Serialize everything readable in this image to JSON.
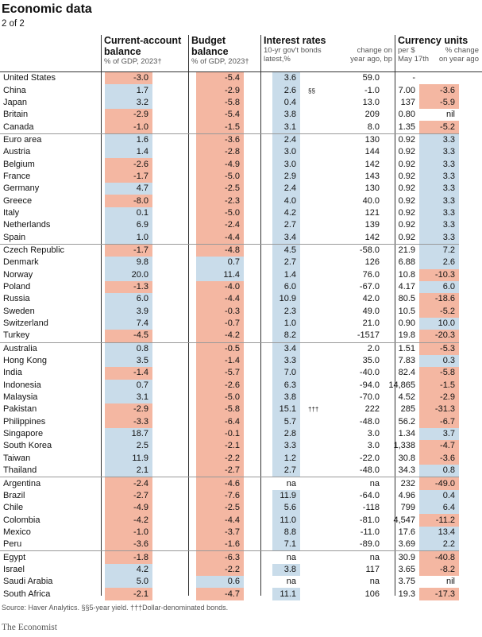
{
  "title": "Economic data",
  "subtitle": "2 of 2",
  "headers": {
    "ca": {
      "h1": "Current-account",
      "h1b": "balance",
      "h2": "% of GDP, 2023†"
    },
    "bb": {
      "h1": "Budget",
      "h1b": "balance",
      "h2": "% of GDP, 2023†"
    },
    "ir": {
      "h1": "Interest rates",
      "h2a": "10-yr gov't bonds",
      "h2b": "latest,%",
      "h2c": "change on",
      "h2d": "year ago, bp"
    },
    "cu": {
      "h1": "Currency units",
      "h2a": "per $",
      "h2b": "May 17th",
      "h2c": "% change",
      "h2d": "on year ago"
    }
  },
  "rows": [
    {
      "c": "United States",
      "ca": "-3.0",
      "bb": "-5.4",
      "ir": "3.6",
      "sup": "",
      "chg": "59.0",
      "cu": "-",
      "cc": ""
    },
    {
      "c": "China",
      "ca": "1.7",
      "bb": "-2.9",
      "ir": "2.6",
      "sup": "§§",
      "chg": "-1.0",
      "cu": "7.00",
      "cc": "-3.6"
    },
    {
      "c": "Japan",
      "ca": "3.2",
      "bb": "-5.8",
      "ir": "0.4",
      "sup": "",
      "chg": "13.0",
      "cu": "137",
      "cc": "-5.9"
    },
    {
      "c": "Britain",
      "ca": "-2.9",
      "bb": "-5.4",
      "ir": "3.8",
      "sup": "",
      "chg": "209",
      "cu": "0.80",
      "cc": "nil"
    },
    {
      "c": "Canada",
      "ca": "-1.0",
      "bb": "-1.5",
      "ir": "3.1",
      "sup": "",
      "chg": "8.0",
      "cu": "1.35",
      "cc": "-5.2"
    },
    {
      "c": "Euro area",
      "ca": "1.6",
      "bb": "-3.6",
      "ir": "2.4",
      "sup": "",
      "chg": "130",
      "cu": "0.92",
      "cc": "3.3",
      "g": 1
    },
    {
      "c": "Austria",
      "ca": "1.4",
      "bb": "-2.8",
      "ir": "3.0",
      "sup": "",
      "chg": "144",
      "cu": "0.92",
      "cc": "3.3"
    },
    {
      "c": "Belgium",
      "ca": "-2.6",
      "bb": "-4.9",
      "ir": "3.0",
      "sup": "",
      "chg": "142",
      "cu": "0.92",
      "cc": "3.3"
    },
    {
      "c": "France",
      "ca": "-1.7",
      "bb": "-5.0",
      "ir": "2.9",
      "sup": "",
      "chg": "143",
      "cu": "0.92",
      "cc": "3.3"
    },
    {
      "c": "Germany",
      "ca": "4.7",
      "bb": "-2.5",
      "ir": "2.4",
      "sup": "",
      "chg": "130",
      "cu": "0.92",
      "cc": "3.3"
    },
    {
      "c": "Greece",
      "ca": "-8.0",
      "bb": "-2.3",
      "ir": "4.0",
      "sup": "",
      "chg": "40.0",
      "cu": "0.92",
      "cc": "3.3"
    },
    {
      "c": "Italy",
      "ca": "0.1",
      "bb": "-5.0",
      "ir": "4.2",
      "sup": "",
      "chg": "121",
      "cu": "0.92",
      "cc": "3.3"
    },
    {
      "c": "Netherlands",
      "ca": "6.9",
      "bb": "-2.4",
      "ir": "2.7",
      "sup": "",
      "chg": "139",
      "cu": "0.92",
      "cc": "3.3"
    },
    {
      "c": "Spain",
      "ca": "1.0",
      "bb": "-4.4",
      "ir": "3.4",
      "sup": "",
      "chg": "142",
      "cu": "0.92",
      "cc": "3.3"
    },
    {
      "c": "Czech Republic",
      "ca": "-1.7",
      "bb": "-4.8",
      "ir": "4.5",
      "sup": "",
      "chg": "-58.0",
      "cu": "21.9",
      "cc": "7.2",
      "g": 1
    },
    {
      "c": "Denmark",
      "ca": "9.8",
      "bb": "0.7",
      "ir": "2.7",
      "sup": "",
      "chg": "126",
      "cu": "6.88",
      "cc": "2.6"
    },
    {
      "c": "Norway",
      "ca": "20.0",
      "bb": "11.4",
      "ir": "1.4",
      "sup": "",
      "chg": "76.0",
      "cu": "10.8",
      "cc": "-10.3"
    },
    {
      "c": "Poland",
      "ca": "-1.3",
      "bb": "-4.0",
      "ir": "6.0",
      "sup": "",
      "chg": "-67.0",
      "cu": "4.17",
      "cc": "6.0"
    },
    {
      "c": "Russia",
      "ca": "6.0",
      "bb": "-4.4",
      "ir": "10.9",
      "sup": "",
      "chg": "42.0",
      "cu": "80.5",
      "cc": "-18.6"
    },
    {
      "c": "Sweden",
      "ca": "3.9",
      "bb": "-0.3",
      "ir": "2.3",
      "sup": "",
      "chg": "49.0",
      "cu": "10.5",
      "cc": "-5.2"
    },
    {
      "c": "Switzerland",
      "ca": "7.4",
      "bb": "-0.7",
      "ir": "1.0",
      "sup": "",
      "chg": "21.0",
      "cu": "0.90",
      "cc": "10.0"
    },
    {
      "c": "Turkey",
      "ca": "-4.5",
      "bb": "-4.2",
      "ir": "8.2",
      "sup": "",
      "chg": "-1517",
      "cu": "19.8",
      "cc": "-20.3"
    },
    {
      "c": "Australia",
      "ca": "0.8",
      "bb": "-0.5",
      "ir": "3.4",
      "sup": "",
      "chg": "2.0",
      "cu": "1.51",
      "cc": "-5.3",
      "g": 1
    },
    {
      "c": "Hong Kong",
      "ca": "3.5",
      "bb": "-1.4",
      "ir": "3.3",
      "sup": "",
      "chg": "35.0",
      "cu": "7.83",
      "cc": "0.3"
    },
    {
      "c": "India",
      "ca": "-1.4",
      "bb": "-5.7",
      "ir": "7.0",
      "sup": "",
      "chg": "-40.0",
      "cu": "82.4",
      "cc": "-5.8"
    },
    {
      "c": "Indonesia",
      "ca": "0.7",
      "bb": "-2.6",
      "ir": "6.3",
      "sup": "",
      "chg": "-94.0",
      "cu": "14,865",
      "cc": "-1.5"
    },
    {
      "c": "Malaysia",
      "ca": "3.1",
      "bb": "-5.0",
      "ir": "3.8",
      "sup": "",
      "chg": "-70.0",
      "cu": "4.52",
      "cc": "-2.9"
    },
    {
      "c": "Pakistan",
      "ca": "-2.9",
      "bb": "-5.8",
      "ir": "15.1",
      "sup": "†††",
      "chg": "222",
      "cu": "285",
      "cc": "-31.3"
    },
    {
      "c": "Philippines",
      "ca": "-3.3",
      "bb": "-6.4",
      "ir": "5.7",
      "sup": "",
      "chg": "-48.0",
      "cu": "56.2",
      "cc": "-6.7"
    },
    {
      "c": "Singapore",
      "ca": "18.7",
      "bb": "-0.1",
      "ir": "2.8",
      "sup": "",
      "chg": "3.0",
      "cu": "1.34",
      "cc": "3.7"
    },
    {
      "c": "South Korea",
      "ca": "2.5",
      "bb": "-2.1",
      "ir": "3.3",
      "sup": "",
      "chg": "3.0",
      "cu": "1,338",
      "cc": "-4.7"
    },
    {
      "c": "Taiwan",
      "ca": "11.9",
      "bb": "-2.2",
      "ir": "1.2",
      "sup": "",
      "chg": "-22.0",
      "cu": "30.8",
      "cc": "-3.6"
    },
    {
      "c": "Thailand",
      "ca": "2.1",
      "bb": "-2.7",
      "ir": "2.7",
      "sup": "",
      "chg": "-48.0",
      "cu": "34.3",
      "cc": "0.8"
    },
    {
      "c": "Argentina",
      "ca": "-2.4",
      "bb": "-4.6",
      "ir": "na",
      "sup": "",
      "chg": "na",
      "cu": "232",
      "cc": "-49.0",
      "g": 1
    },
    {
      "c": "Brazil",
      "ca": "-2.7",
      "bb": "-7.6",
      "ir": "11.9",
      "sup": "",
      "chg": "-64.0",
      "cu": "4.96",
      "cc": "0.4"
    },
    {
      "c": "Chile",
      "ca": "-4.9",
      "bb": "-2.5",
      "ir": "5.6",
      "sup": "",
      "chg": "-118",
      "cu": "799",
      "cc": "6.4"
    },
    {
      "c": "Colombia",
      "ca": "-4.2",
      "bb": "-4.4",
      "ir": "11.0",
      "sup": "",
      "chg": "-81.0",
      "cu": "4,547",
      "cc": "-11.2"
    },
    {
      "c": "Mexico",
      "ca": "-1.0",
      "bb": "-3.7",
      "ir": "8.8",
      "sup": "",
      "chg": "-11.0",
      "cu": "17.6",
      "cc": "13.4"
    },
    {
      "c": "Peru",
      "ca": "-3.6",
      "bb": "-1.6",
      "ir": "7.1",
      "sup": "",
      "chg": "-89.0",
      "cu": "3.69",
      "cc": "2.2"
    },
    {
      "c": "Egypt",
      "ca": "-1.8",
      "bb": "-6.3",
      "ir": "na",
      "sup": "",
      "chg": "na",
      "cu": "30.9",
      "cc": "-40.8",
      "g": 1
    },
    {
      "c": "Israel",
      "ca": "4.2",
      "bb": "-2.2",
      "ir": "3.8",
      "sup": "",
      "chg": "117",
      "cu": "3.65",
      "cc": "-8.2"
    },
    {
      "c": "Saudi Arabia",
      "ca": "5.0",
      "bb": "0.6",
      "ir": "na",
      "sup": "",
      "chg": "na",
      "cu": "3.75",
      "cc": "nil"
    },
    {
      "c": "South Africa",
      "ca": "-2.1",
      "bb": "-4.7",
      "ir": "11.1",
      "sup": "",
      "chg": "106",
      "cu": "19.3",
      "cc": "-17.3"
    }
  ],
  "footnote": "Source: Haver Analytics. §§5-year yield. †††Dollar-denominated bonds.",
  "brand": "The Economist",
  "colors": {
    "positive": "#c9dcea",
    "negative": "#f4b7a2"
  }
}
